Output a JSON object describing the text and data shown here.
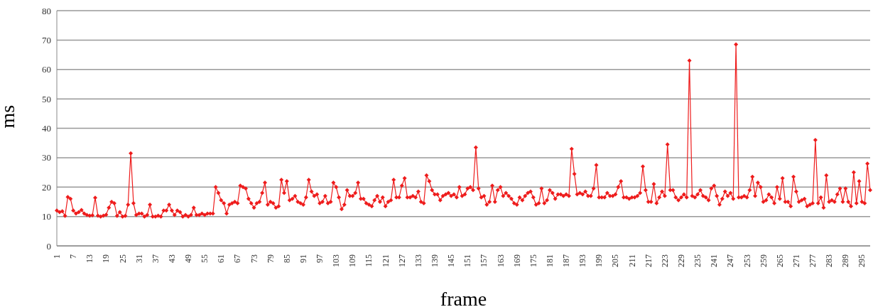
{
  "chart_data": {
    "type": "line",
    "xlabel": "frame",
    "ylabel": "ms",
    "categories": [
      "1",
      null,
      null,
      null,
      null,
      null,
      "7",
      null,
      null,
      null,
      null,
      null,
      "13",
      null,
      null,
      null,
      null,
      null,
      "19",
      null,
      null,
      null,
      null,
      null,
      "25",
      null,
      null,
      null,
      null,
      null,
      "31",
      null,
      null,
      null,
      null,
      null,
      "37",
      null,
      null,
      null,
      null,
      null,
      "43",
      null,
      null,
      null,
      null,
      null,
      "49",
      null,
      null,
      null,
      null,
      null,
      "55",
      null,
      null,
      null,
      null,
      null,
      "61",
      null,
      null,
      null,
      null,
      null,
      "67",
      null,
      null,
      null,
      null,
      null,
      "73",
      null,
      null,
      null,
      null,
      null,
      "79",
      null,
      null,
      null,
      null,
      null,
      "85",
      null,
      null,
      null,
      null,
      null,
      "91",
      null,
      null,
      null,
      null,
      null,
      "97",
      null,
      null,
      null,
      null,
      null,
      "103",
      null,
      null,
      null,
      null,
      null,
      "109",
      null,
      null,
      null,
      null,
      null,
      "115",
      null,
      null,
      null,
      null,
      null,
      "121",
      null,
      null,
      null,
      null,
      null,
      "127",
      null,
      null,
      null,
      null,
      null,
      "133",
      null,
      null,
      null,
      null,
      null,
      "139",
      null,
      null,
      null,
      null,
      null,
      "145",
      null,
      null,
      null,
      null,
      null,
      "151",
      null,
      null,
      null,
      null,
      null,
      "157",
      null,
      null,
      null,
      null,
      null,
      "163",
      null,
      null,
      null,
      null,
      null,
      "169",
      null,
      null,
      null,
      null,
      null,
      "175",
      null,
      null,
      null,
      null,
      null,
      "181",
      null,
      null,
      null,
      null,
      null,
      "187",
      null,
      null,
      null,
      null,
      null,
      "193",
      null,
      null,
      null,
      null,
      null,
      "199",
      null,
      null,
      null,
      null,
      null,
      "205",
      null,
      null,
      null,
      null,
      null,
      "211",
      null,
      null,
      null,
      null,
      null,
      "217",
      null,
      null,
      null,
      null,
      null,
      "223",
      null,
      null,
      null,
      null,
      null,
      "229",
      null,
      null,
      null,
      null,
      null,
      "235",
      null,
      null,
      null,
      null,
      null,
      "241",
      null,
      null,
      null,
      null,
      null,
      "247",
      null,
      null,
      null,
      null,
      null,
      "253",
      null,
      null,
      null,
      null,
      null,
      "259",
      null,
      null,
      null,
      null,
      null,
      "265",
      null,
      null,
      null,
      null,
      null,
      "271",
      null,
      null,
      null,
      null,
      null,
      "277",
      null,
      null,
      null,
      null,
      null,
      "283",
      null,
      null,
      null,
      null,
      null,
      "289",
      null,
      null,
      null,
      null,
      null,
      "295",
      null,
      null,
      null
    ],
    "series": [
      {
        "color": "#ee1c1c",
        "values": [
          12,
          11.5,
          11.8,
          10.2,
          16.6,
          16,
          12,
          11,
          11.5,
          12.2,
          11,
          10.5,
          10.3,
          10.4,
          16.4,
          10.3,
          10,
          10.3,
          10.6,
          13,
          15,
          14.5,
          10.2,
          11.5,
          10,
          10.2,
          14,
          31.5,
          14.5,
          10.5,
          11,
          11,
          10,
          10.5,
          14,
          10,
          10,
          10.3,
          10,
          12,
          12,
          14,
          12,
          10.5,
          12,
          11.5,
          10,
          10.5,
          10,
          10.5,
          13,
          10.5,
          10.5,
          11,
          10.5,
          11,
          11,
          11,
          20,
          18,
          15.5,
          14.5,
          11,
          14,
          14.5,
          15,
          14.5,
          20.5,
          20,
          19.5,
          16,
          14.5,
          13,
          14.5,
          15,
          18,
          21.5,
          14,
          15,
          14.5,
          13,
          13.5,
          22.5,
          18,
          22,
          15.5,
          16,
          17,
          15,
          14.5,
          14,
          16.5,
          22.5,
          18.5,
          17,
          17.5,
          14.5,
          15,
          17,
          14.5,
          15,
          21.5,
          20,
          16.5,
          12.5,
          14,
          19,
          17,
          17,
          18,
          21.5,
          16,
          16,
          14.5,
          14,
          13.5,
          15.5,
          17,
          15,
          16.5,
          13.5,
          15,
          15.5,
          22.5,
          16.5,
          16.5,
          20.5,
          23,
          16.5,
          16.5,
          17,
          16.5,
          18.5,
          15,
          14.5,
          24,
          22,
          19,
          17.5,
          17.5,
          15.5,
          17,
          17.5,
          18,
          17,
          17.5,
          16.5,
          20,
          17,
          17.5,
          19.5,
          20,
          19,
          33.5,
          19.5,
          16.5,
          17,
          14,
          15,
          20.5,
          15,
          19,
          20,
          17,
          18,
          17,
          16,
          14.5,
          14,
          16.5,
          15.5,
          17,
          18,
          18.5,
          16.5,
          14,
          14.5,
          19.5,
          14.5,
          15.5,
          19,
          18,
          16,
          17.5,
          17.5,
          17,
          17.5,
          17,
          33,
          24.5,
          17.5,
          18,
          17.5,
          18.5,
          17,
          17,
          19.5,
          27.5,
          16.5,
          16.5,
          16.5,
          18,
          17,
          17,
          17.5,
          20,
          22,
          16.5,
          16.5,
          16,
          16.5,
          16.5,
          17,
          18,
          27,
          19,
          15,
          15,
          21,
          14.5,
          16.5,
          18.5,
          17,
          34.5,
          19,
          19,
          16.5,
          15.5,
          16.5,
          17.5,
          16.5,
          63,
          17,
          16.5,
          17.5,
          19,
          17,
          16.5,
          15.5,
          19.5,
          20.5,
          17,
          14,
          16,
          18.5,
          17,
          18,
          16,
          68.5,
          16.5,
          16.5,
          17,
          16.5,
          19,
          23.5,
          17,
          21.5,
          20,
          15,
          15.5,
          17.5,
          16.5,
          14.5,
          20,
          16,
          23,
          15,
          15,
          13.5,
          23.5,
          18.5,
          15,
          15.5,
          16,
          13.5,
          14,
          14.5,
          36,
          14.5,
          16.5,
          13,
          24,
          15,
          15.5,
          15,
          17.5,
          19.5,
          15,
          19.5,
          15,
          13.5,
          25,
          14.5,
          22,
          15,
          14.5,
          28,
          19
        ]
      }
    ],
    "ylim": [
      0,
      80
    ],
    "yticks": [
      0,
      10,
      20,
      30,
      40,
      50,
      60,
      70,
      80
    ],
    "grid": "y",
    "legend": false,
    "marker": "diamond",
    "line_style": "solid"
  }
}
